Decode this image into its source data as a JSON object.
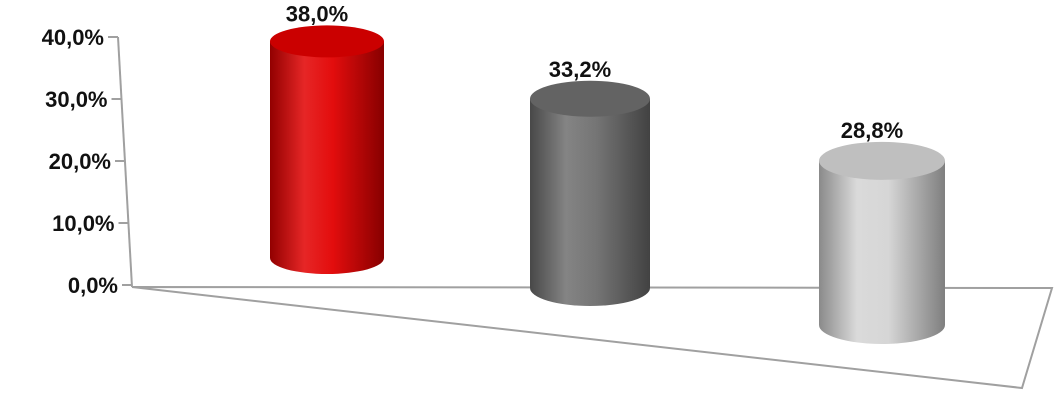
{
  "chart_data": {
    "type": "bar",
    "style": "3d-cylinder",
    "title": "",
    "xlabel": "",
    "ylabel": "",
    "categories": [
      "",
      "",
      ""
    ],
    "values": [
      38.0,
      33.2,
      28.8
    ],
    "data_labels": [
      "38,0%",
      "33,2%",
      "28,8%"
    ],
    "bar_colors": [
      "#e10000",
      "#6e6e6e",
      "#d4d4d4"
    ],
    "ylim": [
      0,
      40
    ],
    "y_ticks": [
      {
        "value": 0,
        "label": "0,0%"
      },
      {
        "value": 10,
        "label": "10,0%"
      },
      {
        "value": 20,
        "label": "20,0%"
      },
      {
        "value": 30,
        "label": "30,0%"
      },
      {
        "value": 40,
        "label": "40,0%"
      }
    ],
    "grid": false,
    "legend": "none"
  }
}
